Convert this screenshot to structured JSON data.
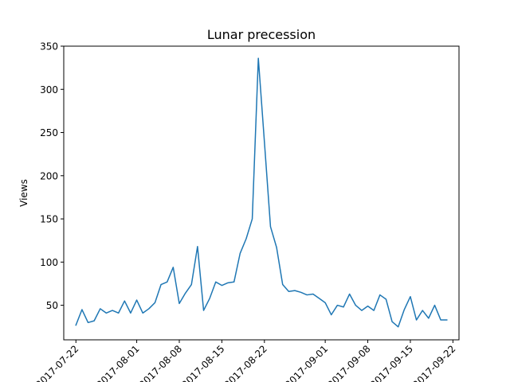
{
  "chart_data": {
    "type": "line",
    "title": "Lunar precession",
    "xlabel": "",
    "ylabel": "Views",
    "ylim": [
      10,
      350
    ],
    "xlim": [
      "2017-07-20",
      "2017-09-23"
    ],
    "grid": false,
    "yticks": [
      50,
      100,
      150,
      200,
      250,
      300,
      350
    ],
    "xticks": [
      "2017-07-22",
      "2017-08-01",
      "2017-08-08",
      "2017-08-15",
      "2017-08-22",
      "2017-09-01",
      "2017-09-08",
      "2017-09-15",
      "2017-09-22"
    ],
    "series": [
      {
        "color": "#1f77b4",
        "x": [
          "2017-07-22",
          "2017-07-23",
          "2017-07-24",
          "2017-07-25",
          "2017-07-26",
          "2017-07-27",
          "2017-07-28",
          "2017-07-29",
          "2017-07-30",
          "2017-07-31",
          "2017-08-01",
          "2017-08-02",
          "2017-08-03",
          "2017-08-04",
          "2017-08-05",
          "2017-08-06",
          "2017-08-07",
          "2017-08-08",
          "2017-08-09",
          "2017-08-10",
          "2017-08-11",
          "2017-08-12",
          "2017-08-13",
          "2017-08-14",
          "2017-08-15",
          "2017-08-16",
          "2017-08-17",
          "2017-08-18",
          "2017-08-19",
          "2017-08-20",
          "2017-08-21",
          "2017-08-22",
          "2017-08-23",
          "2017-08-24",
          "2017-08-25",
          "2017-08-26",
          "2017-08-27",
          "2017-08-28",
          "2017-08-29",
          "2017-08-30",
          "2017-08-31",
          "2017-09-01",
          "2017-09-02",
          "2017-09-03",
          "2017-09-04",
          "2017-09-05",
          "2017-09-06",
          "2017-09-07",
          "2017-09-08",
          "2017-09-09",
          "2017-09-10",
          "2017-09-11",
          "2017-09-12",
          "2017-09-13",
          "2017-09-14",
          "2017-09-15",
          "2017-09-16",
          "2017-09-17",
          "2017-09-18",
          "2017-09-19",
          "2017-09-20",
          "2017-09-21"
        ],
        "values": [
          27,
          45,
          30,
          32,
          46,
          41,
          44,
          41,
          55,
          41,
          56,
          41,
          46,
          53,
          74,
          77,
          94,
          52,
          64,
          74,
          118,
          44,
          58,
          77,
          73,
          76,
          77,
          110,
          127,
          150,
          336,
          239,
          141,
          117,
          74,
          66,
          67,
          65,
          62,
          63,
          58,
          53,
          39,
          50,
          48,
          63,
          50,
          44,
          49,
          44,
          62,
          57,
          31,
          25,
          45,
          60,
          33,
          44,
          35,
          50,
          33,
          33
        ]
      }
    ]
  }
}
